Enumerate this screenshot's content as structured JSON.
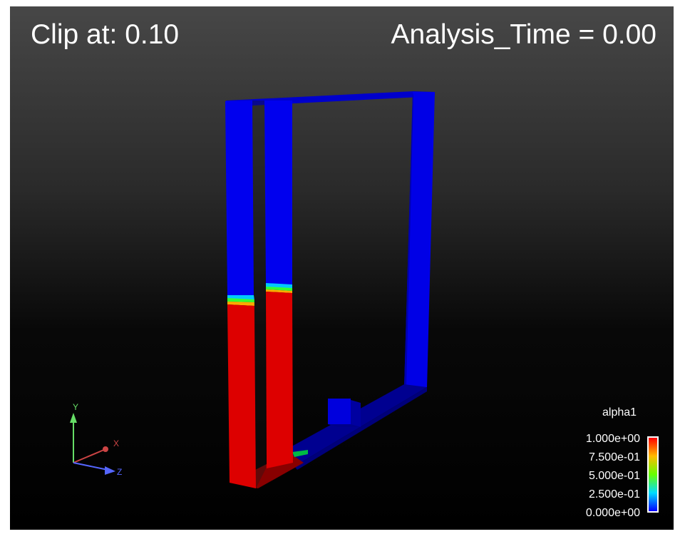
{
  "overlay": {
    "clip_label": "Clip at: 0.10",
    "time_label": "Analysis_Time = 0.00"
  },
  "legend": {
    "title": "alpha1",
    "ticks": [
      "1.000e+00",
      "7.500e-01",
      "5.000e-01",
      "2.500e-01",
      "0.000e+00"
    ],
    "colormap": [
      "#ff0000",
      "#ffbb00",
      "#66ff00",
      "#00ddff",
      "#0000ff"
    ]
  },
  "axes_triad": {
    "y_label": "Y",
    "x_label": "X",
    "z_label": "Z",
    "colors": {
      "y": "#66dd66",
      "x": "#cc4444",
      "z": "#5566ff"
    }
  },
  "scene": {
    "air_color": "#0000ee",
    "water_color": "#dd0000",
    "dark_air_color": "#00009a"
  }
}
